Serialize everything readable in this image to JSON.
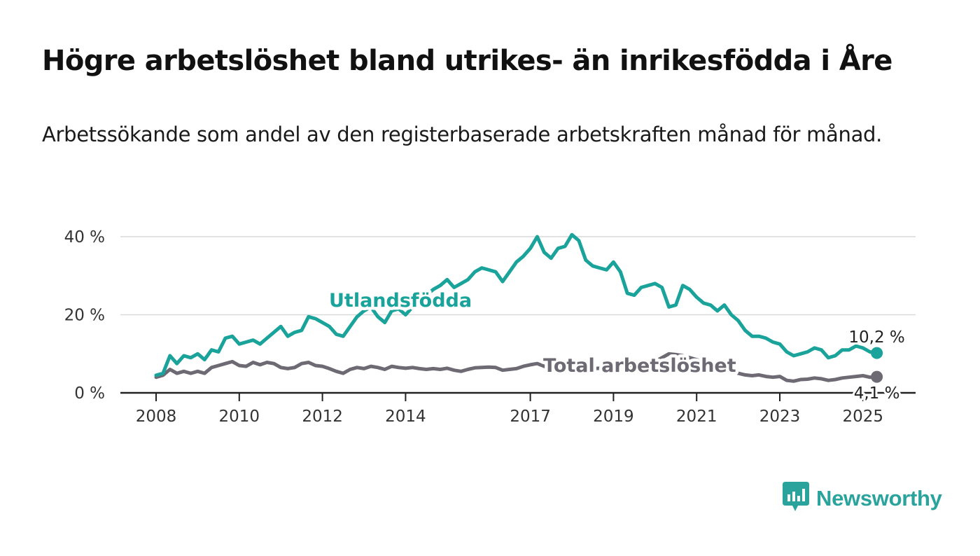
{
  "title": "Högre arbetslöshet bland utrikes- än inrikesfödda i Åre",
  "subtitle": "Arbetssökande som andel av den registerbaserade arbetskraften månad för månad.",
  "brand": {
    "name": "Newsworthy",
    "icon": "newsworthy-bar-chart-icon",
    "color": "#2aa39c"
  },
  "chart_data": {
    "type": "line",
    "ylim": [
      0,
      40
    ],
    "y_ticks": [
      {
        "value": 0,
        "label": "0 %"
      },
      {
        "value": 20,
        "label": "20 %"
      },
      {
        "value": 40,
        "label": "40 %"
      }
    ],
    "x_ticks": [
      "2008",
      "2010",
      "2012",
      "2014",
      "2017",
      "2019",
      "2021",
      "2023",
      "2025"
    ],
    "grid": true,
    "series": [
      {
        "name": "Utlandsfödda",
        "color": "#1aa39a",
        "end_label": "10,2 %",
        "points": [
          [
            "2008-01",
            4.5
          ],
          [
            "2008-03",
            5
          ],
          [
            "2008-05",
            9.5
          ],
          [
            "2008-07",
            7.5
          ],
          [
            "2008-09",
            9.5
          ],
          [
            "2008-11",
            9
          ],
          [
            "2009-01",
            10
          ],
          [
            "2009-03",
            8.5
          ],
          [
            "2009-05",
            11
          ],
          [
            "2009-07",
            10.5
          ],
          [
            "2009-09",
            14
          ],
          [
            "2009-11",
            14.5
          ],
          [
            "2010-01",
            12.5
          ],
          [
            "2010-03",
            13
          ],
          [
            "2010-05",
            13.5
          ],
          [
            "2010-07",
            12.5
          ],
          [
            "2010-09",
            14
          ],
          [
            "2010-11",
            15.5
          ],
          [
            "2011-01",
            17
          ],
          [
            "2011-03",
            14.5
          ],
          [
            "2011-05",
            15.5
          ],
          [
            "2011-07",
            16
          ],
          [
            "2011-09",
            19.5
          ],
          [
            "2011-11",
            19
          ],
          [
            "2012-01",
            18
          ],
          [
            "2012-03",
            17
          ],
          [
            "2012-05",
            15
          ],
          [
            "2012-07",
            14.5
          ],
          [
            "2012-09",
            17
          ],
          [
            "2012-11",
            19.5
          ],
          [
            "2013-01",
            21
          ],
          [
            "2013-03",
            22
          ],
          [
            "2013-05",
            19.5
          ],
          [
            "2013-07",
            18
          ],
          [
            "2013-09",
            21
          ],
          [
            "2013-11",
            21.5
          ],
          [
            "2014-01",
            20
          ],
          [
            "2014-03",
            22
          ],
          [
            "2014-05",
            24
          ],
          [
            "2014-07",
            25
          ],
          [
            "2014-09",
            26.5
          ],
          [
            "2014-11",
            27.5
          ],
          [
            "2015-01",
            29
          ],
          [
            "2015-03",
            27
          ],
          [
            "2015-05",
            28
          ],
          [
            "2015-07",
            29
          ],
          [
            "2015-09",
            31
          ],
          [
            "2015-11",
            32
          ],
          [
            "2016-01",
            31.5
          ],
          [
            "2016-03",
            31
          ],
          [
            "2016-05",
            28.5
          ],
          [
            "2016-07",
            31
          ],
          [
            "2016-09",
            33.5
          ],
          [
            "2016-11",
            35
          ],
          [
            "2017-01",
            37
          ],
          [
            "2017-03",
            40
          ],
          [
            "2017-05",
            36
          ],
          [
            "2017-07",
            34.5
          ],
          [
            "2017-09",
            37
          ],
          [
            "2017-11",
            37.5
          ],
          [
            "2018-01",
            40.5
          ],
          [
            "2018-03",
            39
          ],
          [
            "2018-05",
            34
          ],
          [
            "2018-07",
            32.5
          ],
          [
            "2018-09",
            32
          ],
          [
            "2018-11",
            31.5
          ],
          [
            "2019-01",
            33.5
          ],
          [
            "2019-03",
            31
          ],
          [
            "2019-05",
            25.5
          ],
          [
            "2019-07",
            25
          ],
          [
            "2019-09",
            27
          ],
          [
            "2019-11",
            27.5
          ],
          [
            "2020-01",
            28
          ],
          [
            "2020-03",
            27
          ],
          [
            "2020-05",
            22
          ],
          [
            "2020-07",
            22.5
          ],
          [
            "2020-09",
            27.5
          ],
          [
            "2020-11",
            26.5
          ],
          [
            "2021-01",
            24.5
          ],
          [
            "2021-03",
            23
          ],
          [
            "2021-05",
            22.5
          ],
          [
            "2021-07",
            21
          ],
          [
            "2021-09",
            22.5
          ],
          [
            "2021-11",
            20
          ],
          [
            "2022-01",
            18.5
          ],
          [
            "2022-03",
            16
          ],
          [
            "2022-05",
            14.5
          ],
          [
            "2022-07",
            14.5
          ],
          [
            "2022-09",
            14
          ],
          [
            "2022-11",
            13
          ],
          [
            "2023-01",
            12.5
          ],
          [
            "2023-03",
            10.5
          ],
          [
            "2023-05",
            9.5
          ],
          [
            "2023-07",
            10
          ],
          [
            "2023-09",
            10.5
          ],
          [
            "2023-11",
            11.5
          ],
          [
            "2024-01",
            11
          ],
          [
            "2024-03",
            9
          ],
          [
            "2024-05",
            9.5
          ],
          [
            "2024-07",
            11
          ],
          [
            "2024-09",
            11
          ],
          [
            "2024-11",
            12
          ],
          [
            "2025-01",
            11.5
          ],
          [
            "2025-03",
            10.5
          ],
          [
            "2025-05",
            10.2
          ]
        ]
      },
      {
        "name": "Total arbetslöshet",
        "color": "#6e6a73",
        "end_label": "4,1 %",
        "points": [
          [
            "2008-01",
            4
          ],
          [
            "2008-03",
            4.5
          ],
          [
            "2008-05",
            6
          ],
          [
            "2008-07",
            5
          ],
          [
            "2008-09",
            5.5
          ],
          [
            "2008-11",
            5
          ],
          [
            "2009-01",
            5.5
          ],
          [
            "2009-03",
            5
          ],
          [
            "2009-05",
            6.5
          ],
          [
            "2009-07",
            7
          ],
          [
            "2009-09",
            7.5
          ],
          [
            "2009-11",
            8
          ],
          [
            "2010-01",
            7
          ],
          [
            "2010-03",
            6.8
          ],
          [
            "2010-05",
            7.8
          ],
          [
            "2010-07",
            7.2
          ],
          [
            "2010-09",
            7.8
          ],
          [
            "2010-11",
            7.5
          ],
          [
            "2011-01",
            6.5
          ],
          [
            "2011-03",
            6.2
          ],
          [
            "2011-05",
            6.5
          ],
          [
            "2011-07",
            7.5
          ],
          [
            "2011-09",
            7.8
          ],
          [
            "2011-11",
            7
          ],
          [
            "2012-01",
            6.8
          ],
          [
            "2012-03",
            6.2
          ],
          [
            "2012-05",
            5.5
          ],
          [
            "2012-07",
            5
          ],
          [
            "2012-09",
            6
          ],
          [
            "2012-11",
            6.5
          ],
          [
            "2013-01",
            6.2
          ],
          [
            "2013-03",
            6.8
          ],
          [
            "2013-05",
            6.5
          ],
          [
            "2013-07",
            6
          ],
          [
            "2013-09",
            6.8
          ],
          [
            "2013-11",
            6.5
          ],
          [
            "2014-01",
            6.3
          ],
          [
            "2014-03",
            6.5
          ],
          [
            "2014-05",
            6.2
          ],
          [
            "2014-07",
            6
          ],
          [
            "2014-09",
            6.2
          ],
          [
            "2014-11",
            6
          ],
          [
            "2015-01",
            6.3
          ],
          [
            "2015-03",
            5.8
          ],
          [
            "2015-05",
            5.5
          ],
          [
            "2015-07",
            6
          ],
          [
            "2015-09",
            6.4
          ],
          [
            "2015-11",
            6.5
          ],
          [
            "2016-01",
            6.6
          ],
          [
            "2016-03",
            6.5
          ],
          [
            "2016-05",
            5.8
          ],
          [
            "2016-07",
            6
          ],
          [
            "2016-09",
            6.2
          ],
          [
            "2016-11",
            6.8
          ],
          [
            "2017-01",
            7.2
          ],
          [
            "2017-03",
            7.5
          ],
          [
            "2017-05",
            6.8
          ],
          [
            "2017-07",
            6.6
          ],
          [
            "2017-09",
            6.8
          ],
          [
            "2017-11",
            6.5
          ],
          [
            "2018-01",
            7
          ],
          [
            "2018-03",
            6.8
          ],
          [
            "2018-05",
            6.5
          ],
          [
            "2018-07",
            6.2
          ],
          [
            "2018-09",
            6.3
          ],
          [
            "2018-11",
            6
          ],
          [
            "2019-01",
            6.2
          ],
          [
            "2019-03",
            6.5
          ],
          [
            "2019-05",
            6.4
          ],
          [
            "2019-07",
            6.5
          ],
          [
            "2019-09",
            6.6
          ],
          [
            "2019-11",
            7
          ],
          [
            "2020-01",
            8
          ],
          [
            "2020-03",
            9
          ],
          [
            "2020-05",
            10
          ],
          [
            "2020-07",
            9.8
          ],
          [
            "2020-09",
            9.5
          ],
          [
            "2020-11",
            9
          ],
          [
            "2021-01",
            8.5
          ],
          [
            "2021-03",
            8
          ],
          [
            "2021-05",
            7
          ],
          [
            "2021-07",
            6.5
          ],
          [
            "2021-09",
            6
          ],
          [
            "2021-11",
            5.5
          ],
          [
            "2022-01",
            5
          ],
          [
            "2022-03",
            4.6
          ],
          [
            "2022-05",
            4.4
          ],
          [
            "2022-07",
            4.6
          ],
          [
            "2022-09",
            4.2
          ],
          [
            "2022-11",
            4
          ],
          [
            "2023-01",
            4.2
          ],
          [
            "2023-03",
            3.2
          ],
          [
            "2023-05",
            3
          ],
          [
            "2023-07",
            3.4
          ],
          [
            "2023-09",
            3.5
          ],
          [
            "2023-11",
            3.8
          ],
          [
            "2024-01",
            3.6
          ],
          [
            "2024-03",
            3.2
          ],
          [
            "2024-05",
            3.4
          ],
          [
            "2024-07",
            3.8
          ],
          [
            "2024-09",
            4
          ],
          [
            "2024-11",
            4.2
          ],
          [
            "2025-01",
            4.4
          ],
          [
            "2025-03",
            4
          ],
          [
            "2025-05",
            4.1
          ]
        ]
      }
    ]
  }
}
